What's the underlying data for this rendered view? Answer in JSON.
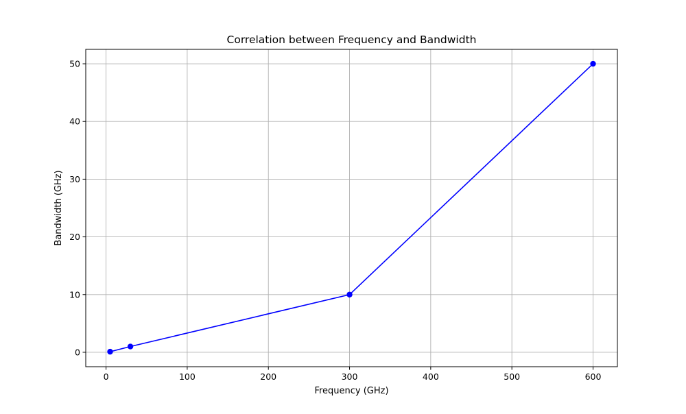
{
  "chart_data": {
    "type": "line",
    "title": "Correlation between Frequency and Bandwidth",
    "xlabel": "Frequency (GHz)",
    "ylabel": "Bandwidth (GHz)",
    "xlim": [
      -25,
      630
    ],
    "ylim": [
      -2.5,
      52.5
    ],
    "x_ticks": [
      0,
      100,
      200,
      300,
      400,
      500,
      600
    ],
    "y_ticks": [
      0,
      10,
      20,
      30,
      40,
      50
    ],
    "grid": true,
    "series": [
      {
        "color": "#0000ff",
        "marker": "circle",
        "points": [
          {
            "x": 5,
            "y": 0.1
          },
          {
            "x": 30,
            "y": 1
          },
          {
            "x": 300,
            "y": 10
          },
          {
            "x": 600,
            "y": 50
          }
        ]
      }
    ]
  }
}
